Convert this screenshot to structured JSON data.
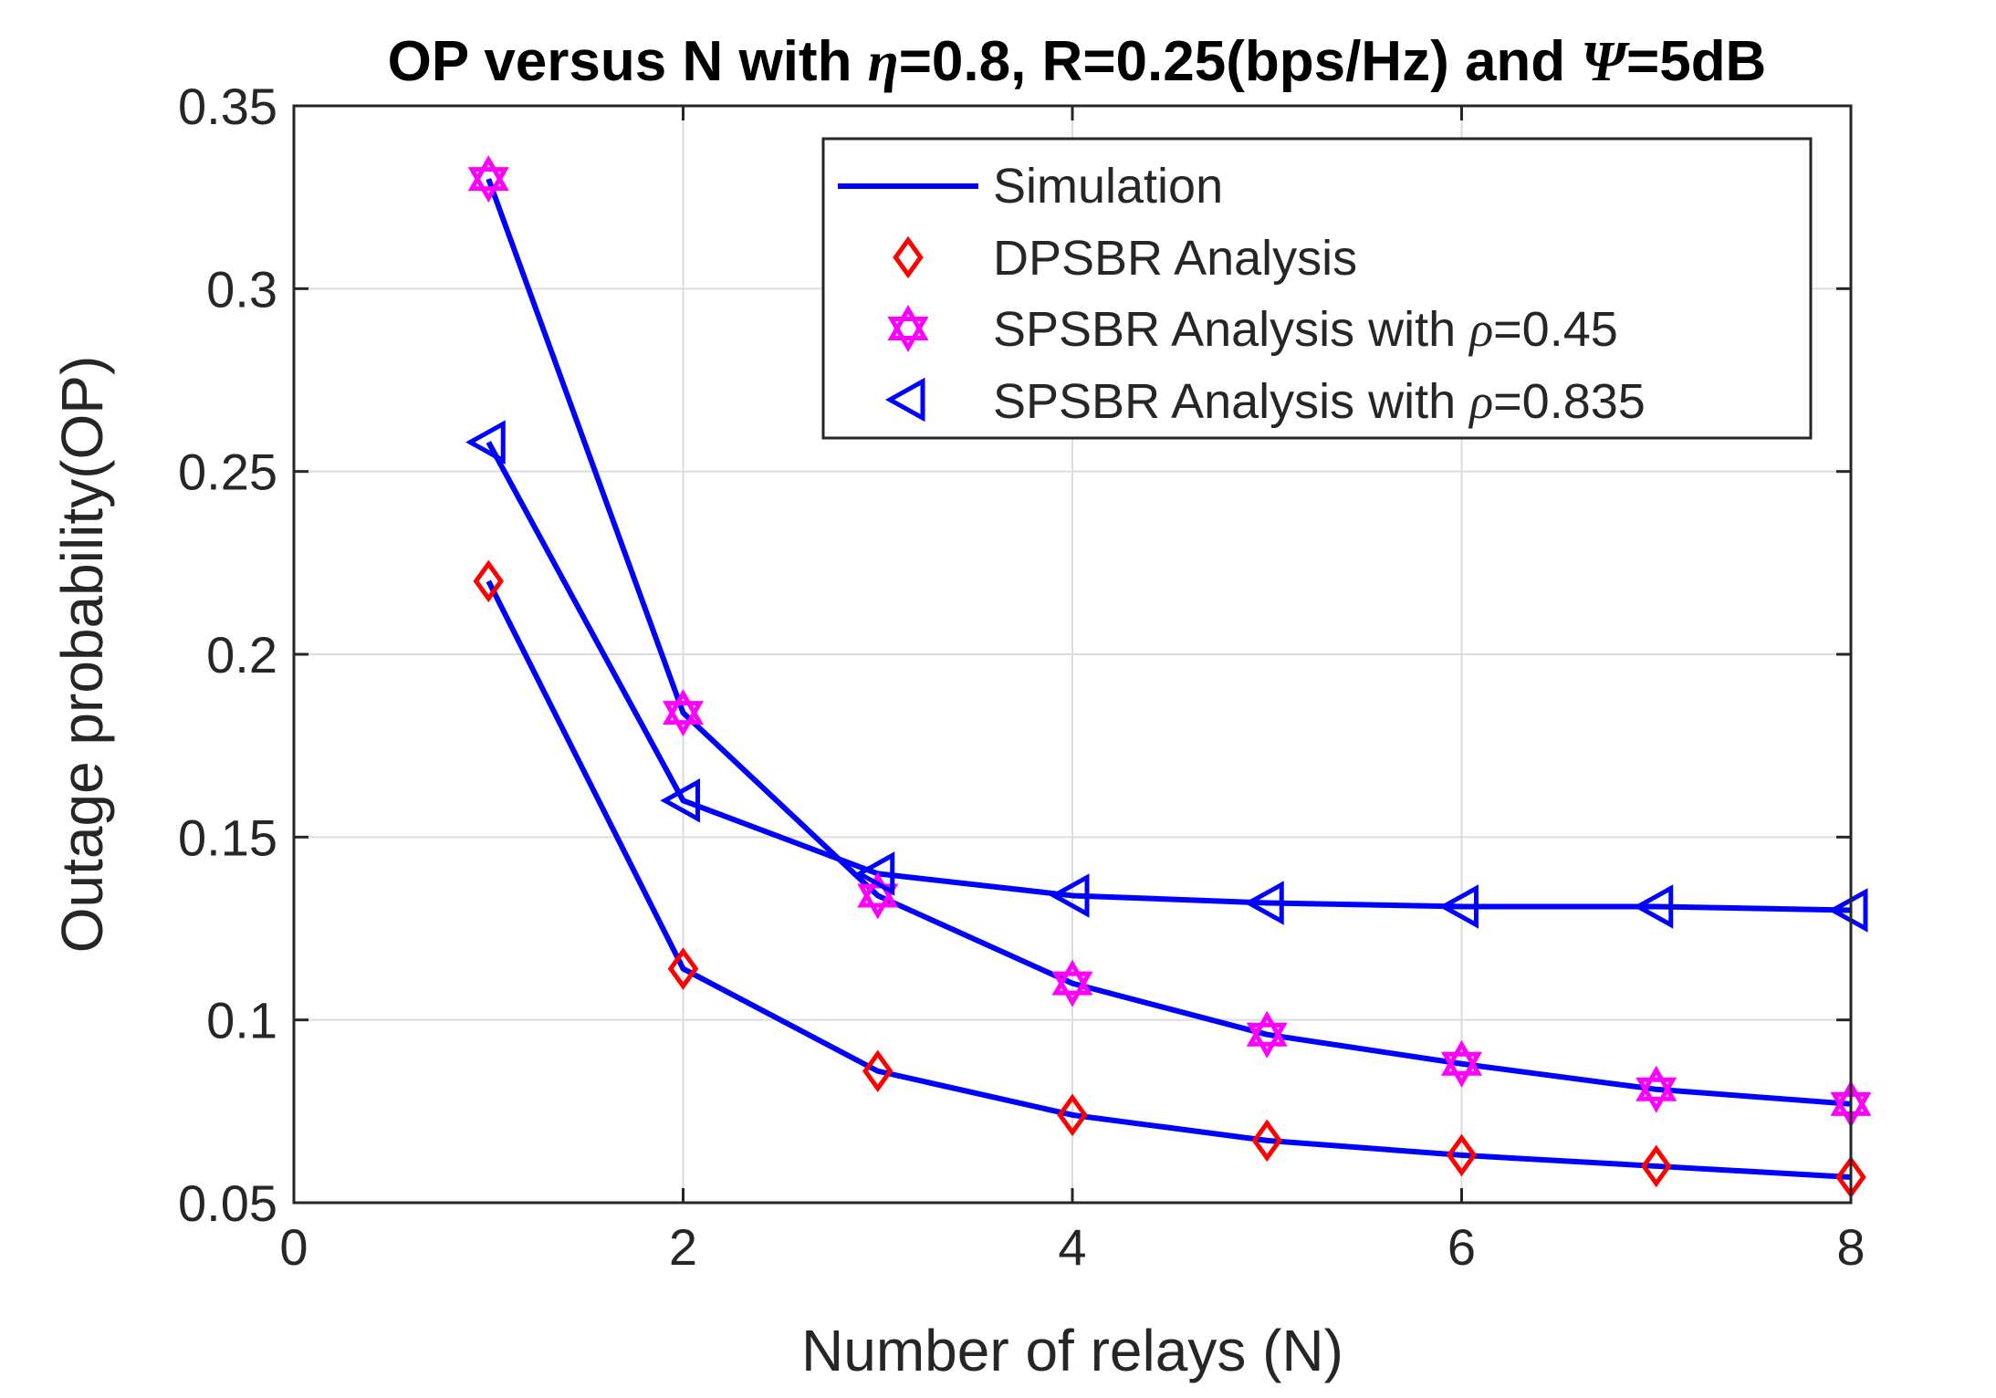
{
  "chart_data": {
    "type": "line",
    "title_parts": {
      "prefix": "OP versus N with ",
      "eta_symbol": "η",
      "middle": "=0.8, R=0.25(bps/Hz) and ",
      "psi_symbol": "Ψ",
      "suffix": "=5dB"
    },
    "xlabel": "Number of relays (N)",
    "ylabel": "Outage probability(OP)",
    "xlim": [
      0,
      8
    ],
    "ylim": [
      0.05,
      0.35
    ],
    "xticks": [
      "0",
      "2",
      "4",
      "6",
      "8"
    ],
    "yticks": [
      "0.05",
      "0.1",
      "0.15",
      "0.2",
      "0.25",
      "0.3",
      "0.35"
    ],
    "grid": true,
    "legend_position": "top-right",
    "x": [
      1,
      2,
      3,
      4,
      5,
      6,
      7,
      8
    ],
    "series": [
      {
        "name": "DPSBR",
        "values": [
          0.22,
          0.114,
          0.086,
          0.074,
          0.067,
          0.063,
          0.06,
          0.057
        ],
        "line_color": "#0000ff",
        "marker": "diamond",
        "marker_color": "#ff0000"
      },
      {
        "name": "SPSBR rho=0.45",
        "values": [
          0.33,
          0.184,
          0.134,
          0.11,
          0.096,
          0.088,
          0.081,
          0.077
        ],
        "line_color": "#0000ff",
        "marker": "hexagram",
        "marker_color": "#ff00ff"
      },
      {
        "name": "SPSBR rho=0.835",
        "values": [
          0.258,
          0.16,
          0.14,
          0.134,
          0.132,
          0.131,
          0.131,
          0.13
        ],
        "line_color": "#0000ff",
        "marker": "triangle-left",
        "marker_color": "#0000ff"
      }
    ],
    "legend": {
      "simulation": "Simulation",
      "dpsbr": "DPSBR Analysis",
      "spsbr045_prefix": "SPSBR Analysis with ",
      "spsbr045_symbol": "ρ",
      "spsbr045_suffix": "=0.45",
      "spsbr0835_prefix": "SPSBR Analysis with ",
      "spsbr0835_symbol": "ρ",
      "spsbr0835_suffix": "=0.835"
    }
  }
}
